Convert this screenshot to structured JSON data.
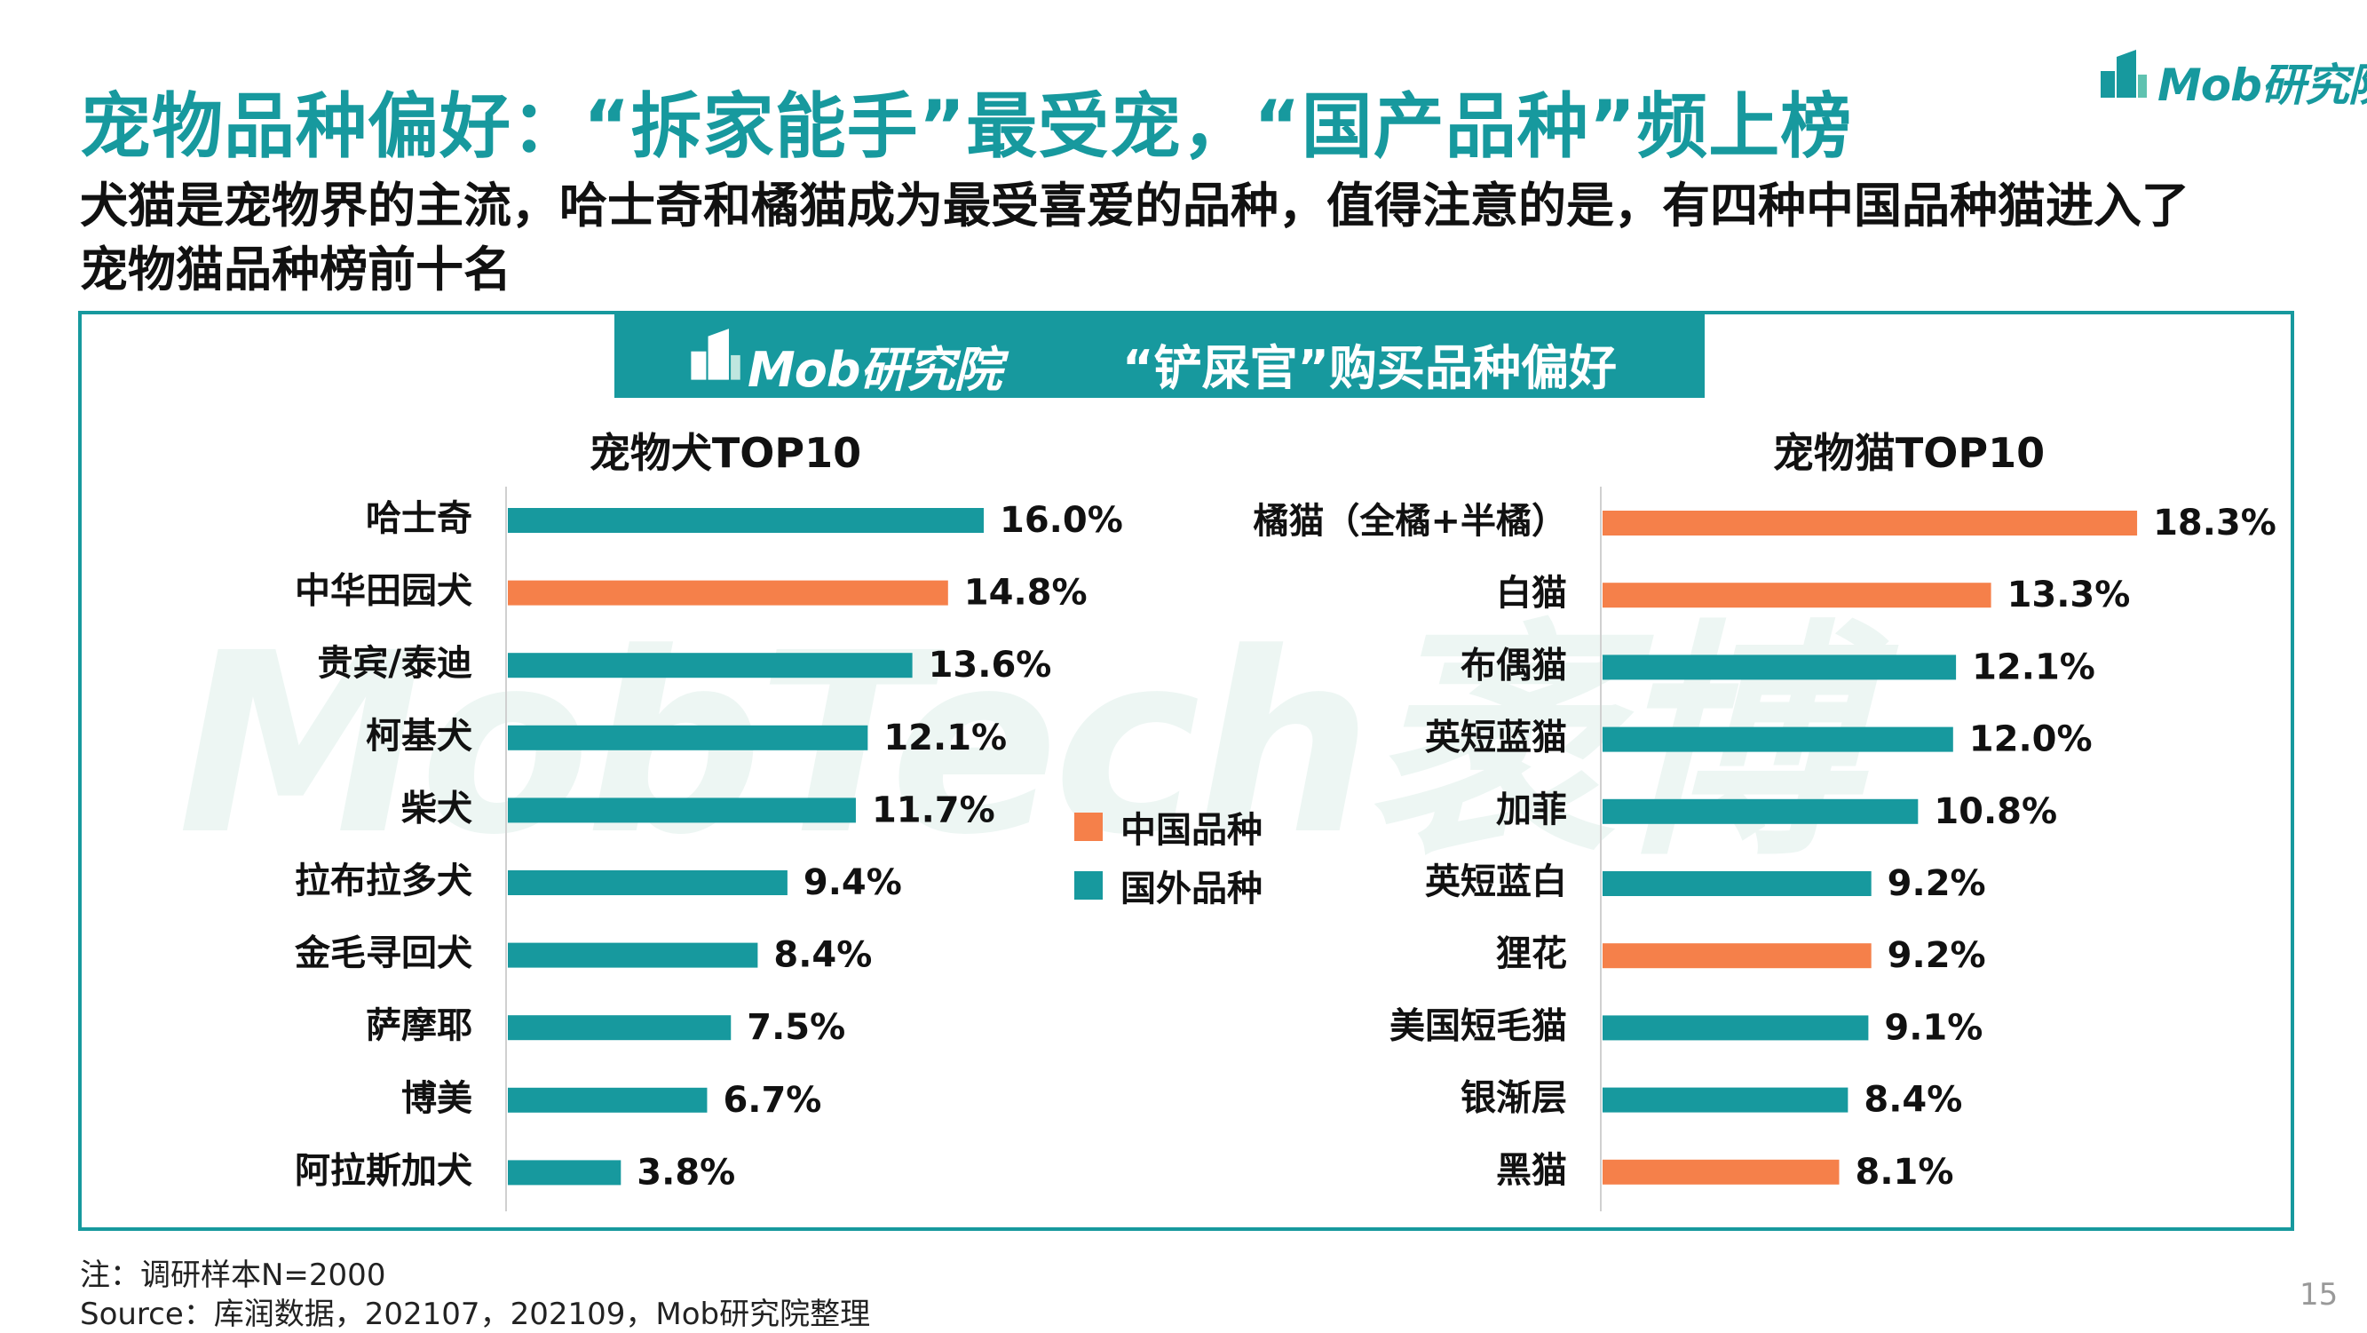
{
  "header": {
    "title": "宠物品种偏好：“拆家能手”最受宠，“国产品种”频上榜",
    "subtitle_line1": "犬猫是宠物界的主流，哈士奇和橘猫成为最受喜爱的品种，值得注意的是，有四种中国品种猫进入了",
    "subtitle_line2": "宠物猫品种榜前十名"
  },
  "logo": {
    "text": "Mob研究院"
  },
  "banner": {
    "logo_text": "Mob研究院",
    "title": "“铲屎官”购买品种偏好"
  },
  "watermark": {
    "text": "MobTech袤博"
  },
  "legend": {
    "items": [
      {
        "label": "中国品种",
        "color": "#f5804a"
      },
      {
        "label": "国外品种",
        "color": "#17999e"
      }
    ]
  },
  "colors": {
    "domestic": "#f5804a",
    "foreign": "#17999e",
    "accent": "#17999e"
  },
  "chart_data": [
    {
      "type": "bar",
      "orientation": "horizontal",
      "title": "宠物犬TOP10",
      "categories": [
        "哈士奇",
        "中华田园犬",
        "贵宾/泰迪",
        "柯基犬",
        "柴犬",
        "拉布拉多犬",
        "金毛寻回犬",
        "萨摩耶",
        "博美",
        "阿拉斯加犬"
      ],
      "values": [
        16.0,
        14.8,
        13.6,
        12.1,
        11.7,
        9.4,
        8.4,
        7.5,
        6.7,
        3.8
      ],
      "labels": [
        "16.0%",
        "14.8%",
        "13.6%",
        "12.1%",
        "11.7%",
        "9.4%",
        "8.4%",
        "7.5%",
        "6.7%",
        "3.8%"
      ],
      "origin": [
        "国外品种",
        "中国品种",
        "国外品种",
        "国外品种",
        "国外品种",
        "国外品种",
        "国外品种",
        "国外品种",
        "国外品种",
        "国外品种"
      ],
      "unit": "%",
      "grid": false
    },
    {
      "type": "bar",
      "orientation": "horizontal",
      "title": "宠物猫TOP10",
      "categories": [
        "橘猫（全橘+半橘）",
        "白猫",
        "布偶猫",
        "英短蓝猫",
        "加菲",
        "英短蓝白",
        "狸花",
        "美国短毛猫",
        "银渐层",
        "黑猫"
      ],
      "values": [
        18.3,
        13.3,
        12.1,
        12.0,
        10.8,
        9.2,
        9.2,
        9.1,
        8.4,
        8.1
      ],
      "labels": [
        "18.3%",
        "13.3%",
        "12.1%",
        "12.0%",
        "10.8%",
        "9.2%",
        "9.2%",
        "9.1%",
        "8.4%",
        "8.1%"
      ],
      "origin": [
        "中国品种",
        "中国品种",
        "国外品种",
        "国外品种",
        "国外品种",
        "国外品种",
        "中国品种",
        "国外品种",
        "国外品种",
        "中国品种"
      ],
      "unit": "%",
      "grid": false
    }
  ],
  "footer": {
    "note": "注：调研样本N=2000",
    "source": "Source：库润数据，202107，202109，Mob研究院整理",
    "page_number": "15"
  }
}
